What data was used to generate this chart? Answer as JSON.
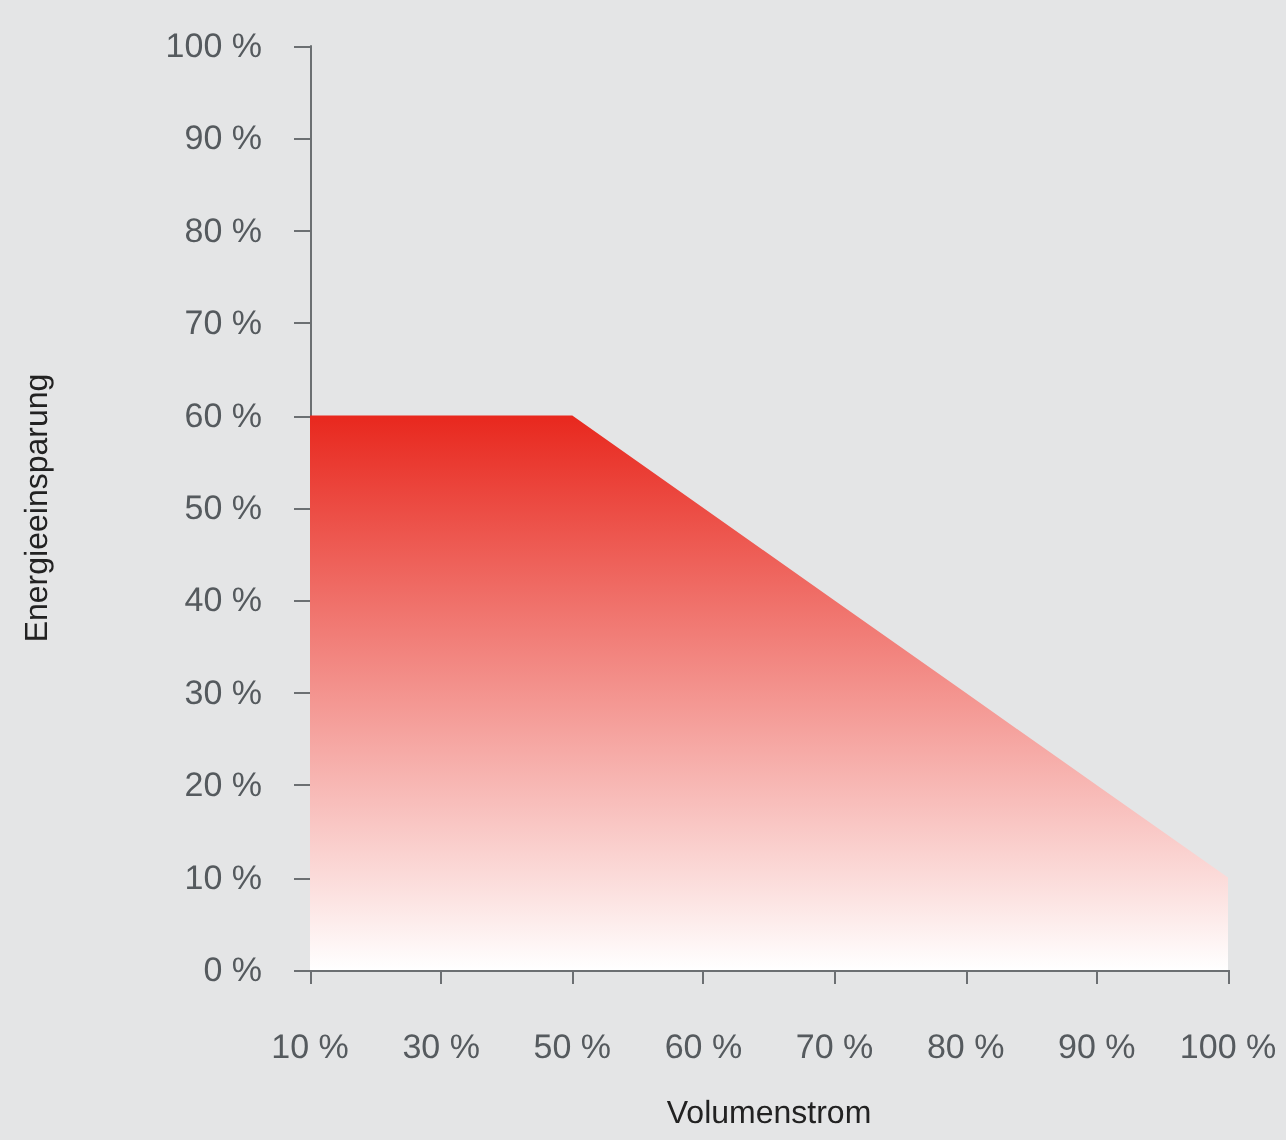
{
  "chart_data": {
    "type": "area",
    "xlabel": "Volumenstrom",
    "ylabel": "Energieeinsparung",
    "categories": [
      "10 %",
      "30 %",
      "50 %",
      "60 %",
      "70 %",
      "80 %",
      "90 %",
      "100 %"
    ],
    "values": [
      60,
      60,
      60,
      50,
      40,
      30,
      20,
      10
    ],
    "color": "#e8281e",
    "ylim": [
      0,
      100
    ],
    "yticks": [
      {
        "value": 0,
        "label": "0 %"
      },
      {
        "value": 10,
        "label": "10 %"
      },
      {
        "value": 20,
        "label": "20 %"
      },
      {
        "value": 30,
        "label": "30 %"
      },
      {
        "value": 40,
        "label": "40 %"
      },
      {
        "value": 50,
        "label": "50 %"
      },
      {
        "value": 60,
        "label": "60 %"
      },
      {
        "value": 70,
        "label": "70 %"
      },
      {
        "value": 80,
        "label": "80 %"
      },
      {
        "value": 90,
        "label": "90 %"
      },
      {
        "value": 100,
        "label": "100 %"
      }
    ],
    "grid": false,
    "marker": "none"
  }
}
